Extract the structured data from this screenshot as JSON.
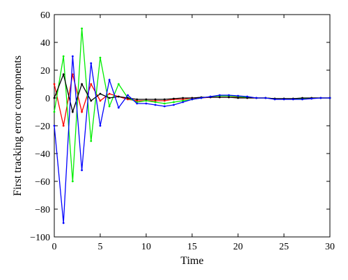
{
  "chart_data": {
    "type": "line",
    "xlabel": "Time",
    "ylabel": "First tracking error components",
    "xlim": [
      0,
      30
    ],
    "ylim": [
      -100,
      60
    ],
    "xticks": [
      0,
      5,
      10,
      15,
      20,
      25,
      30
    ],
    "yticks": [
      -100,
      -80,
      -60,
      -40,
      -20,
      0,
      20,
      40,
      60
    ],
    "grid": false,
    "x": [
      0,
      1,
      2,
      3,
      4,
      5,
      6,
      7,
      8,
      9,
      10,
      11,
      12,
      13,
      14,
      15,
      16,
      17,
      18,
      19,
      20,
      21,
      22,
      23,
      24,
      25,
      26,
      27,
      28,
      29,
      30
    ],
    "series": [
      {
        "color": "#ff0000",
        "values": [
          10,
          -20,
          17,
          -10,
          10,
          -2,
          3,
          1,
          -1,
          -2,
          -2,
          -2,
          -2,
          -1,
          -1,
          0,
          0,
          0.5,
          0.5,
          0.5,
          0.5,
          0,
          0,
          0,
          -0.5,
          -0.5,
          -0.5,
          -0.5,
          0,
          0,
          0
        ]
      },
      {
        "color": "#00ee00",
        "values": [
          -10,
          30,
          -60,
          50,
          -31,
          29,
          -6,
          10,
          0,
          -3,
          -2,
          -3,
          -4,
          -3,
          -2,
          -1,
          0,
          1,
          1.5,
          1.5,
          1,
          0.5,
          0,
          0,
          -0.5,
          -0.5,
          -0.5,
          -0.5,
          0,
          0,
          0
        ]
      },
      {
        "color": "#000000",
        "values": [
          0,
          17,
          -10,
          10,
          -2,
          3,
          0,
          1,
          0,
          -1,
          -1,
          -1,
          -1,
          -0.5,
          0,
          0,
          0.5,
          0.5,
          0.5,
          0.5,
          0,
          0,
          0,
          0,
          -0.5,
          -0.5,
          -0.5,
          0,
          0,
          0,
          0
        ]
      },
      {
        "color": "#0000ff",
        "values": [
          -20,
          -90,
          30,
          -52,
          25,
          -20,
          13,
          -7,
          2,
          -4,
          -4,
          -5,
          -6,
          -5,
          -3,
          -1,
          0,
          1,
          2,
          2,
          1.5,
          1,
          0,
          0,
          -1,
          -1,
          -1,
          -1,
          -0.5,
          0,
          0
        ]
      }
    ]
  }
}
